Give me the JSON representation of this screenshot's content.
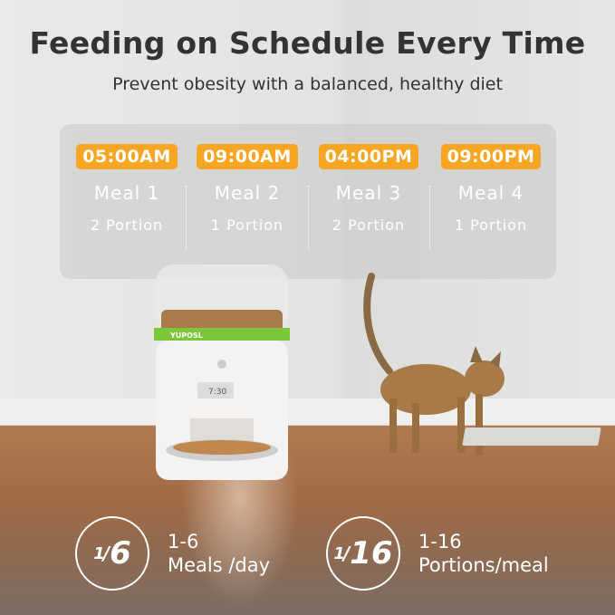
{
  "title": "Feeding on Schedule Every Time",
  "subtitle": "Prevent obesity with a balanced, healthy diet",
  "schedule": [
    {
      "time": "05:00AM",
      "meal": "Meal 1",
      "portion": "2 Portion"
    },
    {
      "time": "09:00AM",
      "meal": "Meal 2",
      "portion": "1 Portion"
    },
    {
      "time": "04:00PM",
      "meal": "Meal 3",
      "portion": "2 Portion"
    },
    {
      "time": "09:00PM",
      "meal": "Meal 4",
      "portion": "1 Portion"
    }
  ],
  "stats": [
    {
      "num": "1",
      "den": "6",
      "range": "1-6",
      "label": "Meals /day"
    },
    {
      "num": "1",
      "den": "16",
      "range": "1-16",
      "label": "Portions/meal"
    }
  ],
  "feeder": {
    "brand": "YUPOSL",
    "display": "7:30"
  },
  "colors": {
    "accent": "#f6a623",
    "feeder_band": "#7cc63a"
  }
}
